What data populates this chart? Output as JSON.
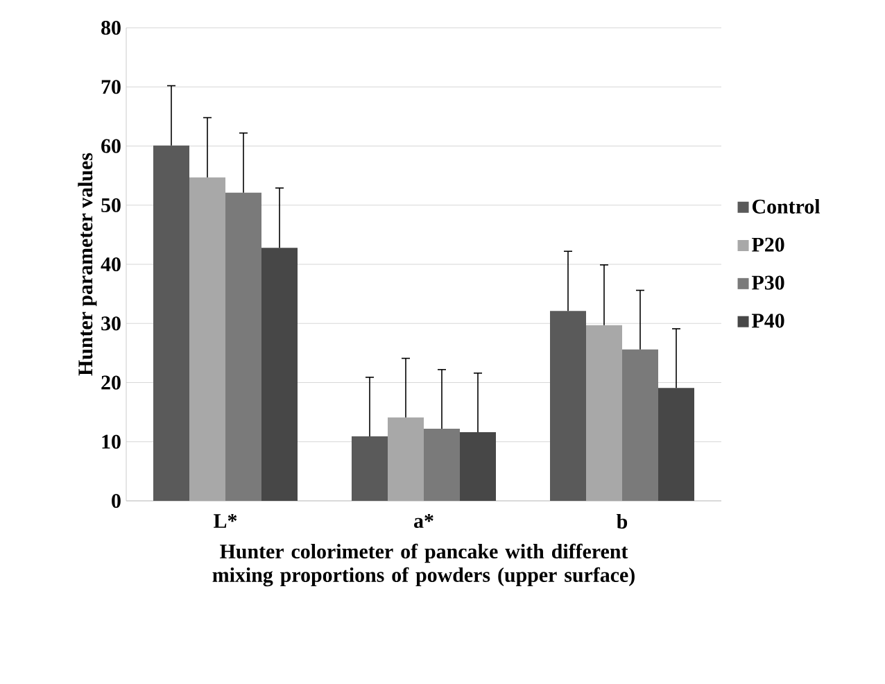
{
  "chart_data": {
    "type": "bar",
    "xlabel": "Hunter colorimeter of pancake with different mixing proportions of powders (upper surface)",
    "ylabel": "Hunter parameter values",
    "categories": [
      "L*",
      "a*",
      "b"
    ],
    "series": [
      {
        "name": "Control",
        "color": "#5a5a5a",
        "values": [
          60.1,
          10.9,
          32.1
        ],
        "errors": [
          [
            60.1,
            70.2
          ],
          [
            10.9,
            20.9
          ],
          [
            32.1,
            42.2
          ]
        ]
      },
      {
        "name": "P20",
        "color": "#a8a8a8",
        "values": [
          54.7,
          14.1,
          29.7
        ],
        "errors": [
          [
            54.7,
            64.8
          ],
          [
            14.1,
            24.1
          ],
          [
            29.7,
            39.9
          ]
        ]
      },
      {
        "name": "P30",
        "color": "#7a7a7a",
        "values": [
          52.1,
          12.2,
          25.6
        ],
        "errors": [
          [
            52.1,
            62.2
          ],
          [
            12.2,
            22.2
          ],
          [
            25.6,
            35.6
          ]
        ]
      },
      {
        "name": "P40",
        "color": "#474747",
        "values": [
          42.8,
          11.6,
          19.1
        ],
        "errors": [
          [
            42.8,
            52.9
          ],
          [
            11.6,
            21.6
          ],
          [
            19.1,
            29.1
          ]
        ]
      }
    ],
    "ylim": [
      0,
      80
    ],
    "yticks": [
      0,
      10,
      20,
      30,
      40,
      50,
      60,
      70,
      80
    ],
    "grid": "y",
    "legend": "right"
  }
}
